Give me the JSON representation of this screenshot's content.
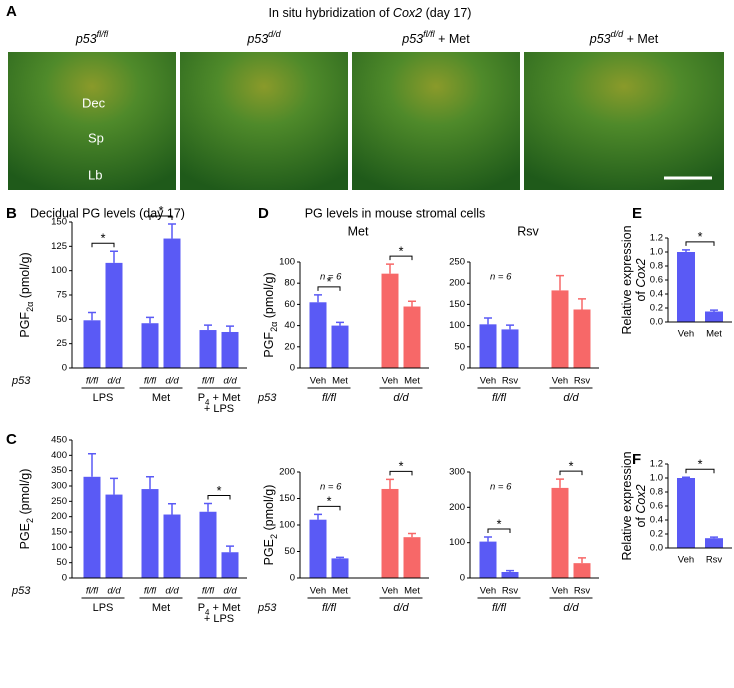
{
  "panel_a": {
    "letter": "A",
    "title": [
      {
        "text": "In situ hybridization of "
      },
      {
        "text": "Cox2",
        "style": "italic"
      },
      {
        "text": " (day 17)"
      }
    ],
    "images": [
      [
        {
          "text": "p53",
          "style": "italic"
        },
        {
          "text": "fl/fl",
          "style": "sup-italic"
        }
      ],
      [
        {
          "text": "p53",
          "style": "italic"
        },
        {
          "text": "d/d",
          "style": "sup-italic"
        }
      ],
      [
        {
          "text": "p53",
          "style": "italic"
        },
        {
          "text": "fl/fl",
          "style": "sup-italic"
        },
        {
          "text": " + Met"
        }
      ],
      [
        {
          "text": "p53",
          "style": "italic"
        },
        {
          "text": "d/d",
          "style": "sup-italic"
        },
        {
          "text": " + Met"
        }
      ]
    ],
    "tissue_labels": [
      "Dec",
      "Sp",
      "Lb"
    ]
  },
  "panel_d": {
    "letter": "D",
    "title": "PG levels in mouse stromal cells",
    "columns": [
      "Met",
      "Rsv"
    ]
  },
  "chart_data": [
    {
      "type": "bar",
      "panel": "B",
      "title": "Decidual PG levels (day 17)",
      "row_label": "p53",
      "ylabel": [
        [
          {
            "text": "PGF"
          },
          {
            "text": "2α",
            "style": "sub"
          },
          {
            "text": " (pmol/g)"
          }
        ]
      ],
      "ylim": [
        0,
        150
      ],
      "yticks": [
        0,
        25,
        50,
        75,
        100,
        125,
        150
      ],
      "category_style": "italic",
      "groups": [
        {
          "label": [
            [
              {
                "text": "LPS"
              }
            ]
          ],
          "categories": [
            "fl/fl",
            "d/d"
          ],
          "values": [
            49,
            108
          ],
          "errors": [
            8,
            12
          ],
          "color": "#5a5af5",
          "significance": "*"
        },
        {
          "label": [
            [
              {
                "text": "Met"
              }
            ]
          ],
          "categories": [
            "fl/fl",
            "d/d"
          ],
          "values": [
            46,
            133
          ],
          "errors": [
            6,
            15
          ],
          "color": "#5a5af5",
          "significance": "*"
        },
        {
          "label": [
            [
              {
                "text": "P"
              },
              {
                "text": "4",
                "style": "sub"
              },
              {
                "text": " + Met"
              }
            ],
            [
              {
                "text": "+ LPS"
              }
            ]
          ],
          "categories": [
            "fl/fl",
            "d/d"
          ],
          "values": [
            39,
            37
          ],
          "errors": [
            5,
            6
          ],
          "color": "#5a5af5"
        }
      ]
    },
    {
      "type": "bar",
      "panel": "C",
      "row_label": "p53",
      "ylabel": [
        [
          {
            "text": "PGE"
          },
          {
            "text": "2",
            "style": "sub"
          },
          {
            "text": " (pmol/g)"
          }
        ]
      ],
      "ylim": [
        0,
        450
      ],
      "yticks": [
        0,
        50,
        100,
        150,
        200,
        250,
        300,
        350,
        400,
        450
      ],
      "category_style": "italic",
      "groups": [
        {
          "label": [
            [
              {
                "text": "LPS"
              }
            ]
          ],
          "categories": [
            "fl/fl",
            "d/d"
          ],
          "values": [
            330,
            272
          ],
          "errors": [
            75,
            53
          ],
          "color": "#5a5af5"
        },
        {
          "label": [
            [
              {
                "text": "Met"
              }
            ]
          ],
          "categories": [
            "fl/fl",
            "d/d"
          ],
          "values": [
            290,
            207
          ],
          "errors": [
            40,
            35
          ],
          "color": "#5a5af5"
        },
        {
          "label": [
            [
              {
                "text": "P"
              },
              {
                "text": "4",
                "style": "sub"
              },
              {
                "text": " + Met"
              }
            ],
            [
              {
                "text": "+ LPS"
              }
            ]
          ],
          "categories": [
            "fl/fl",
            "d/d"
          ],
          "values": [
            216,
            84
          ],
          "errors": [
            27,
            20
          ],
          "color": "#5a5af5",
          "significance": "*"
        }
      ]
    },
    {
      "type": "bar",
      "row_label": "p53",
      "annotation": "n = 6",
      "ylabel": [
        [
          {
            "text": "PGF"
          },
          {
            "text": "2α",
            "style": "sub"
          },
          {
            "text": " (pmol/g)"
          }
        ]
      ],
      "ylim": [
        0,
        100
      ],
      "yticks": [
        0,
        20,
        40,
        60,
        80,
        100
      ],
      "groups": [
        {
          "label": [
            [
              {
                "text": "fl/fl",
                "style": "italic"
              }
            ]
          ],
          "categories": [
            "Veh",
            "Met"
          ],
          "values": [
            62,
            40
          ],
          "errors": [
            7,
            3
          ],
          "color": "#5a5af5",
          "significance": "*"
        },
        {
          "label": [
            [
              {
                "text": "d/d",
                "style": "italic"
              }
            ]
          ],
          "categories": [
            "Veh",
            "Met"
          ],
          "values": [
            89,
            58
          ],
          "errors": [
            9,
            5
          ],
          "color": "#f76868",
          "significance": "*"
        }
      ]
    },
    {
      "type": "bar",
      "annotation": "n = 6",
      "ylim": [
        0,
        250
      ],
      "yticks": [
        0,
        50,
        100,
        150,
        200,
        250
      ],
      "groups": [
        {
          "label": [
            [
              {
                "text": "fl/fl",
                "style": "italic"
              }
            ]
          ],
          "categories": [
            "Veh",
            "Rsv"
          ],
          "values": [
            103,
            91
          ],
          "errors": [
            15,
            10
          ],
          "color": "#5a5af5"
        },
        {
          "label": [
            [
              {
                "text": "d/d",
                "style": "italic"
              }
            ]
          ],
          "categories": [
            "Veh",
            "Rsv"
          ],
          "values": [
            183,
            138
          ],
          "errors": [
            35,
            25
          ],
          "color": "#f76868"
        }
      ]
    },
    {
      "type": "bar",
      "row_label": "p53",
      "annotation": "n = 6",
      "ylabel": [
        [
          {
            "text": "PGE"
          },
          {
            "text": "2",
            "style": "sub"
          },
          {
            "text": " (pmol/g)"
          }
        ]
      ],
      "ylim": [
        0,
        200
      ],
      "yticks": [
        0,
        50,
        100,
        150,
        200
      ],
      "groups": [
        {
          "label": [
            [
              {
                "text": "fl/fl",
                "style": "italic"
              }
            ]
          ],
          "categories": [
            "Veh",
            "Met"
          ],
          "values": [
            110,
            37
          ],
          "errors": [
            10,
            2
          ],
          "color": "#5a5af5",
          "significance": "*"
        },
        {
          "label": [
            [
              {
                "text": "d/d",
                "style": "italic"
              }
            ]
          ],
          "categories": [
            "Veh",
            "Met"
          ],
          "values": [
            168,
            77
          ],
          "errors": [
            18,
            7
          ],
          "color": "#f76868",
          "significance": "*"
        }
      ]
    },
    {
      "type": "bar",
      "annotation": "n = 6",
      "ylim": [
        0,
        300
      ],
      "yticks": [
        0,
        100,
        200,
        300
      ],
      "groups": [
        {
          "label": [
            [
              {
                "text": "fl/fl",
                "style": "italic"
              }
            ]
          ],
          "categories": [
            "Veh",
            "Rsv"
          ],
          "values": [
            103,
            17
          ],
          "errors": [
            13,
            4
          ],
          "color": "#5a5af5",
          "significance": "*"
        },
        {
          "label": [
            [
              {
                "text": "d/d",
                "style": "italic"
              }
            ]
          ],
          "categories": [
            "Veh",
            "Rsv"
          ],
          "values": [
            255,
            42
          ],
          "errors": [
            25,
            15
          ],
          "color": "#f76868",
          "significance": "*"
        }
      ]
    },
    {
      "type": "bar",
      "panel": "E",
      "ylabel": [
        [
          {
            "text": "Relative expression"
          }
        ],
        [
          {
            "text": "of "
          },
          {
            "text": "Cox2",
            "style": "italic"
          }
        ]
      ],
      "ylim": [
        0,
        1.2
      ],
      "yticks": [
        {
          "value": 0,
          "label": "0.0"
        },
        0.2,
        0.4,
        0.6,
        0.8,
        {
          "value": 1,
          "label": "1.0"
        },
        1.2
      ],
      "groups": [
        {
          "categories": [
            "Veh",
            "Met"
          ],
          "values": [
            1,
            0.15
          ],
          "errors": [
            0.03,
            0.02
          ],
          "color": "#5a5af5",
          "significance": "*"
        }
      ]
    },
    {
      "type": "bar",
      "panel": "F",
      "ylabel": [
        [
          {
            "text": "Relative expression"
          }
        ],
        [
          {
            "text": "of "
          },
          {
            "text": "Cox2",
            "style": "italic"
          }
        ]
      ],
      "ylim": [
        0,
        1.2
      ],
      "yticks": [
        {
          "value": 0,
          "label": "0.0"
        },
        0.2,
        0.4,
        0.6,
        0.8,
        {
          "value": 1,
          "label": "1.0"
        },
        1.2
      ],
      "groups": [
        {
          "categories": [
            "Veh",
            "Rsv"
          ],
          "values": [
            1,
            0.14
          ],
          "errors": [
            0.01,
            0.015
          ],
          "color": "#5a5af5",
          "significance": "*"
        }
      ]
    }
  ]
}
